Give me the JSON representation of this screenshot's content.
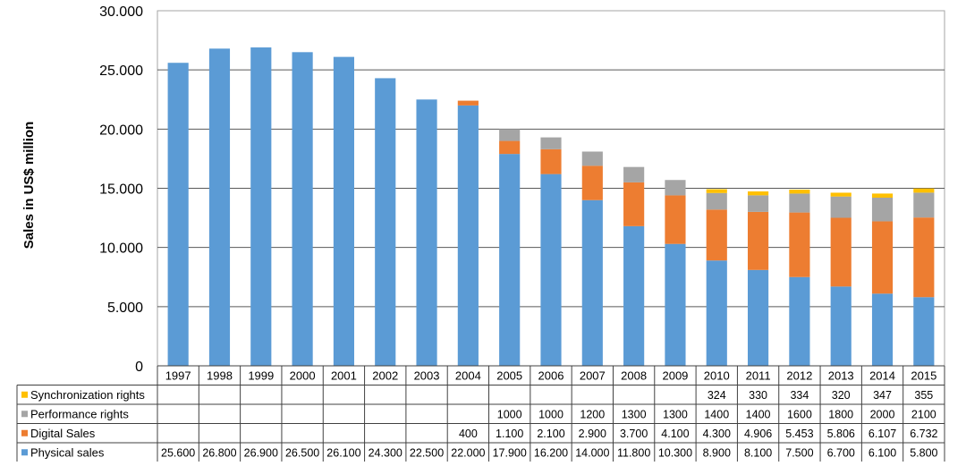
{
  "chart_data": {
    "type": "bar",
    "stacked": true,
    "ylabel": "Sales in US$ million",
    "ylim": [
      0,
      30000
    ],
    "y_ticks": [
      "0",
      "5.000",
      "10.000",
      "15.000",
      "20.000",
      "25.000",
      "30.000"
    ],
    "grid": true,
    "legend_placement": "data table below chart",
    "categories": [
      "1997",
      "1998",
      "1999",
      "2000",
      "2001",
      "2002",
      "2003",
      "2004",
      "2005",
      "2006",
      "2007",
      "2008",
      "2009",
      "2010",
      "2011",
      "2012",
      "2013",
      "2014",
      "2015"
    ],
    "series": [
      {
        "name": "Physical sales",
        "color": "#5b9bd5",
        "values": [
          25600,
          26800,
          26900,
          26500,
          26100,
          24300,
          22500,
          22000,
          17900,
          16200,
          14000,
          11800,
          10300,
          8900,
          8100,
          7500,
          6700,
          6100,
          5800
        ],
        "labels": [
          "25.600",
          "26.800",
          "26.900",
          "26.500",
          "26.100",
          "24.300",
          "22.500",
          "22.000",
          "17.900",
          "16.200",
          "14.000",
          "11.800",
          "10.300",
          "8.900",
          "8.100",
          "7.500",
          "6.700",
          "6.100",
          "5.800"
        ]
      },
      {
        "name": "Digital Sales",
        "color": "#ed7d31",
        "values": [
          0,
          0,
          0,
          0,
          0,
          0,
          0,
          400,
          1100,
          2100,
          2900,
          3700,
          4100,
          4300,
          4906,
          5453,
          5806,
          6107,
          6732
        ],
        "labels": [
          "",
          "",
          "",
          "",
          "",
          "",
          "",
          "400",
          "1.100",
          "2.100",
          "2.900",
          "3.700",
          "4.100",
          "4.300",
          "4.906",
          "5.453",
          "5.806",
          "6.107",
          "6.732"
        ]
      },
      {
        "name": "Performance rights",
        "color": "#a5a5a5",
        "values": [
          0,
          0,
          0,
          0,
          0,
          0,
          0,
          0,
          1000,
          1000,
          1200,
          1300,
          1300,
          1400,
          1400,
          1600,
          1800,
          2000,
          2100
        ],
        "labels": [
          "",
          "",
          "",
          "",
          "",
          "",
          "",
          "",
          "1000",
          "1000",
          "1200",
          "1300",
          "1300",
          "1400",
          "1400",
          "1600",
          "1800",
          "2000",
          "2100"
        ]
      },
      {
        "name": "Synchronization rights",
        "color": "#ffc000",
        "values": [
          0,
          0,
          0,
          0,
          0,
          0,
          0,
          0,
          0,
          0,
          0,
          0,
          0,
          324,
          330,
          334,
          320,
          347,
          355
        ],
        "labels": [
          "",
          "",
          "",
          "",
          "",
          "",
          "",
          "",
          "",
          "",
          "",
          "",
          "",
          "324",
          "330",
          "334",
          "320",
          "347",
          "355"
        ]
      }
    ],
    "table_row_order": [
      "Synchronization rights",
      "Performance rights",
      "Digital Sales",
      "Physical sales"
    ]
  }
}
